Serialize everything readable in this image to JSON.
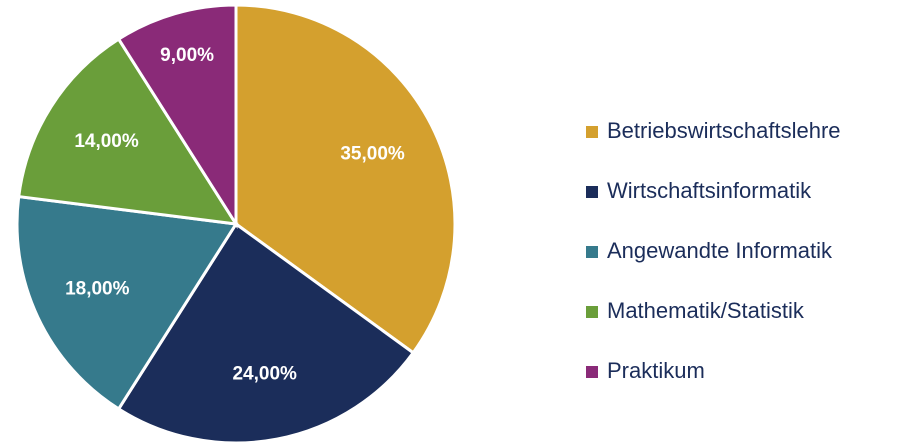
{
  "chart_data": {
    "type": "pie",
    "categories": [
      "Betriebswirtschaftslehre",
      "Wirtschaftsinformatik",
      "Angewandte Informatik",
      "Mathematik/Statistik",
      "Praktikum"
    ],
    "values": [
      35,
      24,
      18,
      14,
      9
    ],
    "value_labels": [
      "35,00%",
      "24,00%",
      "18,00%",
      "14,00%",
      "9,00%"
    ],
    "colors": [
      "#d4a02e",
      "#1b2d5a",
      "#367a8c",
      "#6a9e3a",
      "#8a2a78"
    ],
    "legend": "right"
  }
}
